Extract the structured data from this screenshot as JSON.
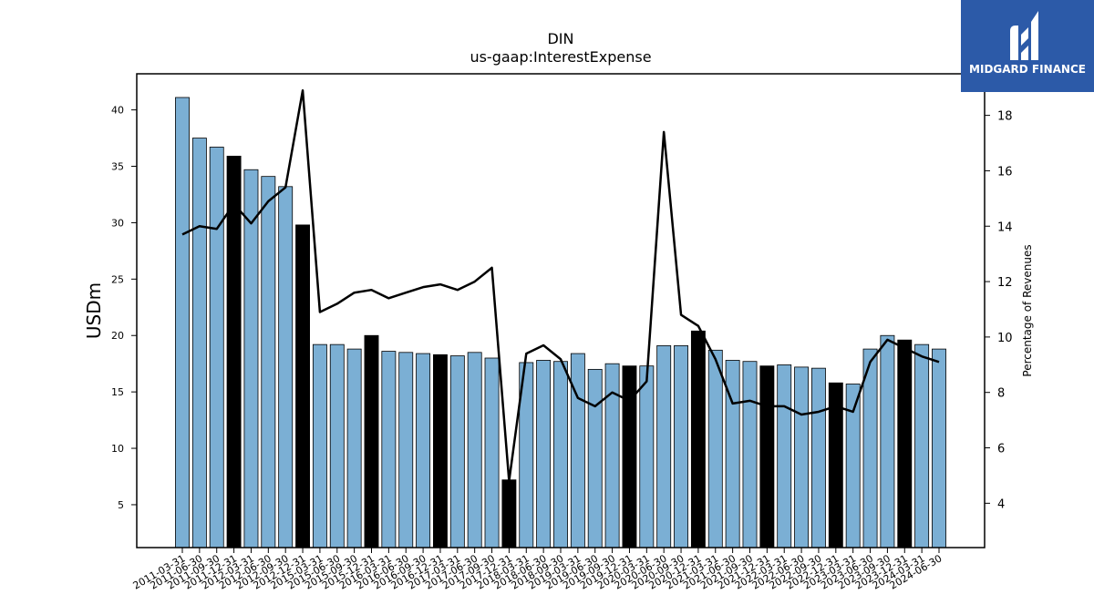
{
  "branding": {
    "logo_text": "MIDGARD FINANCE",
    "logo_color": "#2c5aa8"
  },
  "chart_data": {
    "type": "bar",
    "title": "DIN",
    "subtitle": "us-gaap:InterestExpense",
    "ylabel": "USDm",
    "y2label": "Percentage of Revenues",
    "ylim": [
      1.2,
      43.2
    ],
    "y2lim": [
      2.4,
      19.5
    ],
    "yticks": [
      5,
      10,
      15,
      20,
      25,
      30,
      35,
      40
    ],
    "y2ticks": [
      4,
      6,
      8,
      10,
      12,
      14,
      16,
      18
    ],
    "grid": false,
    "colors": {
      "bar": "#7bafd4",
      "bar_highlight": "#000000",
      "line": "#000000"
    },
    "categories": [
      "2011-03-31",
      "2011-06-30",
      "2011-09-30",
      "2011-12-31",
      "2012-03-31",
      "2012-06-30",
      "2012-09-30",
      "2012-12-31",
      "2015-03-31",
      "2015-06-30",
      "2015-09-30",
      "2015-12-31",
      "2016-03-31",
      "2016-06-30",
      "2016-09-30",
      "2016-12-31",
      "2017-03-31",
      "2017-06-30",
      "2017-09-30",
      "2017-12-31",
      "2018-03-31",
      "2018-06-30",
      "2018-09-30",
      "2019-03-31",
      "2019-06-30",
      "2019-09-30",
      "2019-12-31",
      "2020-03-31",
      "2020-06-30",
      "2020-09-30",
      "2020-12-31",
      "2021-03-31",
      "2021-06-30",
      "2021-09-30",
      "2021-12-31",
      "2022-03-31",
      "2022-06-30",
      "2022-09-30",
      "2022-12-31",
      "2023-03-31",
      "2023-06-30",
      "2023-09-30",
      "2023-12-31",
      "2024-03-31",
      "2024-06-30"
    ],
    "series": [
      {
        "type": "bar",
        "values": [
          41.1,
          37.5,
          36.7,
          35.9,
          34.7,
          34.1,
          33.2,
          29.8,
          19.2,
          19.2,
          18.8,
          20.0,
          18.6,
          18.5,
          18.4,
          18.3,
          18.2,
          18.5,
          18.0,
          7.2,
          17.6,
          17.8,
          17.7,
          18.4,
          17.0,
          17.5,
          17.3,
          17.3,
          19.1,
          19.1,
          20.4,
          18.7,
          17.8,
          17.7,
          17.3,
          17.4,
          17.2,
          17.1,
          15.8,
          15.7,
          18.8,
          20.0,
          19.6,
          19.2,
          18.8
        ],
        "highlight": [
          false,
          false,
          false,
          true,
          false,
          false,
          false,
          true,
          false,
          false,
          false,
          true,
          false,
          false,
          false,
          true,
          false,
          false,
          false,
          true,
          false,
          false,
          false,
          false,
          false,
          false,
          true,
          false,
          false,
          false,
          true,
          false,
          false,
          false,
          true,
          false,
          false,
          false,
          true,
          false,
          false,
          false,
          true,
          false,
          false
        ]
      },
      {
        "type": "line",
        "axis": "y2",
        "values": [
          13.7,
          14.0,
          13.9,
          14.8,
          14.1,
          14.9,
          15.4,
          18.9,
          10.9,
          11.2,
          11.6,
          11.7,
          11.4,
          11.6,
          11.8,
          11.9,
          11.7,
          12.0,
          12.5,
          4.8,
          9.4,
          9.7,
          9.2,
          7.8,
          7.5,
          8.0,
          7.7,
          8.4,
          17.4,
          10.8,
          10.4,
          9.2,
          7.6,
          7.7,
          7.5,
          7.5,
          7.2,
          7.3,
          7.5,
          7.3,
          9.1,
          9.9,
          9.6,
          9.3,
          9.1
        ]
      }
    ]
  }
}
